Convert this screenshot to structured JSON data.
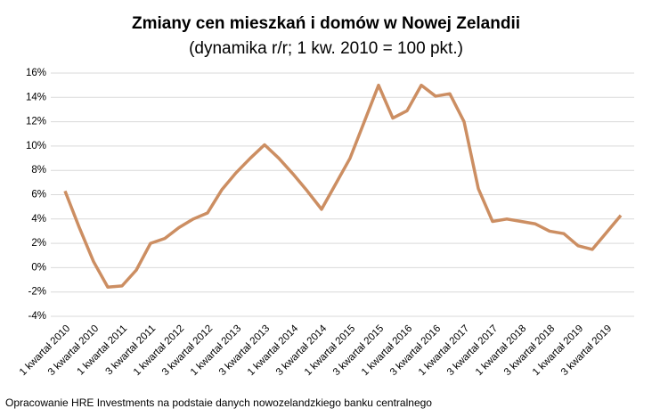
{
  "chart_data": {
    "type": "line",
    "title": "Zmiany cen mieszkań i domów w Nowej Zelandii",
    "subtitle": "(dynamika r/r; 1 kw. 2010 = 100 pkt.)",
    "source": "Opracowanie HRE Investments na podstaie danych nowozelandzkiego banku centralnego",
    "categories": [
      "1 kwartał 2010",
      null,
      "3 kwartał 2010",
      null,
      "1 kwartał 2011",
      null,
      "3 kwartał 2011",
      null,
      "1 kwartał 2012",
      null,
      "3 kwartał 2012",
      null,
      "1 kwartał 2013",
      null,
      "3 kwartał 2013",
      null,
      "1 kwartał 2014",
      null,
      "3 kwartał 2014",
      null,
      "1 kwartał 2015",
      null,
      "3 kwartał 2015",
      null,
      "1 kwartał 2016",
      null,
      "3 kwartał 2016",
      null,
      "1 kwartał 2017",
      null,
      "3 kwartał 2017",
      null,
      "1 kwartał 2018",
      null,
      "3 kwartał 2018",
      null,
      "1 kwartał 2019",
      null,
      "3 kwartał 2019",
      null
    ],
    "values": [
      6.3,
      3.3,
      0.5,
      -1.6,
      -1.5,
      -0.2,
      2.0,
      2.4,
      3.3,
      4.0,
      4.5,
      6.4,
      7.8,
      9.0,
      10.1,
      9.0,
      7.7,
      6.3,
      4.8,
      6.9,
      9.0,
      12.0,
      15.0,
      12.3,
      12.9,
      15.0,
      14.1,
      14.3,
      12.0,
      6.5,
      3.8,
      4.0,
      3.8,
      3.6,
      3.0,
      2.8,
      1.8,
      1.5,
      2.9,
      4.3
    ],
    "color": "#cc8e62",
    "ylim": [
      -4,
      16
    ],
    "yticks": [
      {
        "value": -4,
        "label": "-4%"
      },
      {
        "value": -2,
        "label": "-2%"
      },
      {
        "value": 0,
        "label": "0%"
      },
      {
        "value": 2,
        "label": "2%"
      },
      {
        "value": 4,
        "label": "4%"
      },
      {
        "value": 6,
        "label": "6%"
      },
      {
        "value": 8,
        "label": "8%"
      },
      {
        "value": 10,
        "label": "10%"
      },
      {
        "value": 12,
        "label": "12%"
      },
      {
        "value": 14,
        "label": "14%"
      },
      {
        "value": 16,
        "label": "16%"
      }
    ],
    "grid": true
  }
}
